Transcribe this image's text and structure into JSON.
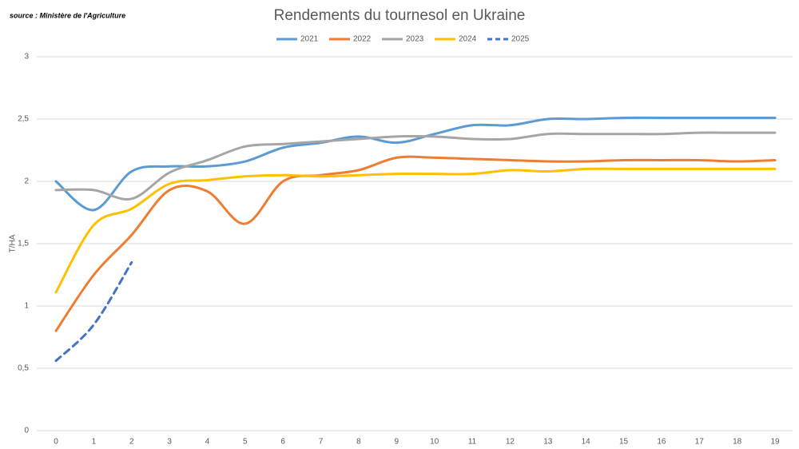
{
  "chart_data": {
    "type": "line",
    "title": "Rendements du tournesol en Ukraine",
    "source": "source : Ministère de l'Agriculture",
    "y_label": "T/HA",
    "categories": [
      "0",
      "1",
      "2",
      "3",
      "4",
      "5",
      "6",
      "7",
      "8",
      "9",
      "10",
      "11",
      "12",
      "13",
      "14",
      "15",
      "16",
      "17",
      "18",
      "19"
    ],
    "series": [
      {
        "name": "2021",
        "color": "#5b9bd5",
        "dash": false,
        "values": [
          2.0,
          1.77,
          2.08,
          2.12,
          2.12,
          2.16,
          2.27,
          2.31,
          2.36,
          2.31,
          2.38,
          2.45,
          2.45,
          2.5,
          2.5,
          2.51,
          2.51,
          2.51,
          2.51,
          2.51
        ]
      },
      {
        "name": "2022",
        "color": "#ed7d31",
        "dash": false,
        "values": [
          0.8,
          1.25,
          1.57,
          1.93,
          1.92,
          1.66,
          2.0,
          2.05,
          2.09,
          2.19,
          2.19,
          2.18,
          2.17,
          2.16,
          2.16,
          2.17,
          2.17,
          2.17,
          2.16,
          2.17
        ]
      },
      {
        "name": "2023",
        "color": "#a5a5a5",
        "dash": false,
        "values": [
          1.93,
          1.93,
          1.86,
          2.07,
          2.17,
          2.28,
          2.3,
          2.32,
          2.34,
          2.36,
          2.36,
          2.34,
          2.34,
          2.38,
          2.38,
          2.38,
          2.38,
          2.39,
          2.39,
          2.39
        ]
      },
      {
        "name": "2024",
        "color": "#ffc000",
        "dash": false,
        "values": [
          1.11,
          1.65,
          1.78,
          1.98,
          2.01,
          2.04,
          2.05,
          2.04,
          2.05,
          2.06,
          2.06,
          2.06,
          2.09,
          2.08,
          2.1,
          2.1,
          2.1,
          2.1,
          2.1,
          2.1
        ]
      },
      {
        "name": "2025",
        "color": "#4472c4",
        "dash": true,
        "values": [
          0.56,
          0.85,
          1.35,
          null,
          null,
          null,
          null,
          null,
          null,
          null,
          null,
          null,
          null,
          null,
          null,
          null,
          null,
          null,
          null,
          null
        ]
      }
    ],
    "ylim": [
      0,
      3
    ],
    "yticks": [
      0,
      {
        "value": 0.5,
        "label": "0,5"
      },
      1,
      {
        "value": 1.5,
        "label": "1,5"
      },
      2,
      {
        "value": 2.5,
        "label": "2,5"
      },
      3
    ],
    "grid": true,
    "legend": "top"
  }
}
